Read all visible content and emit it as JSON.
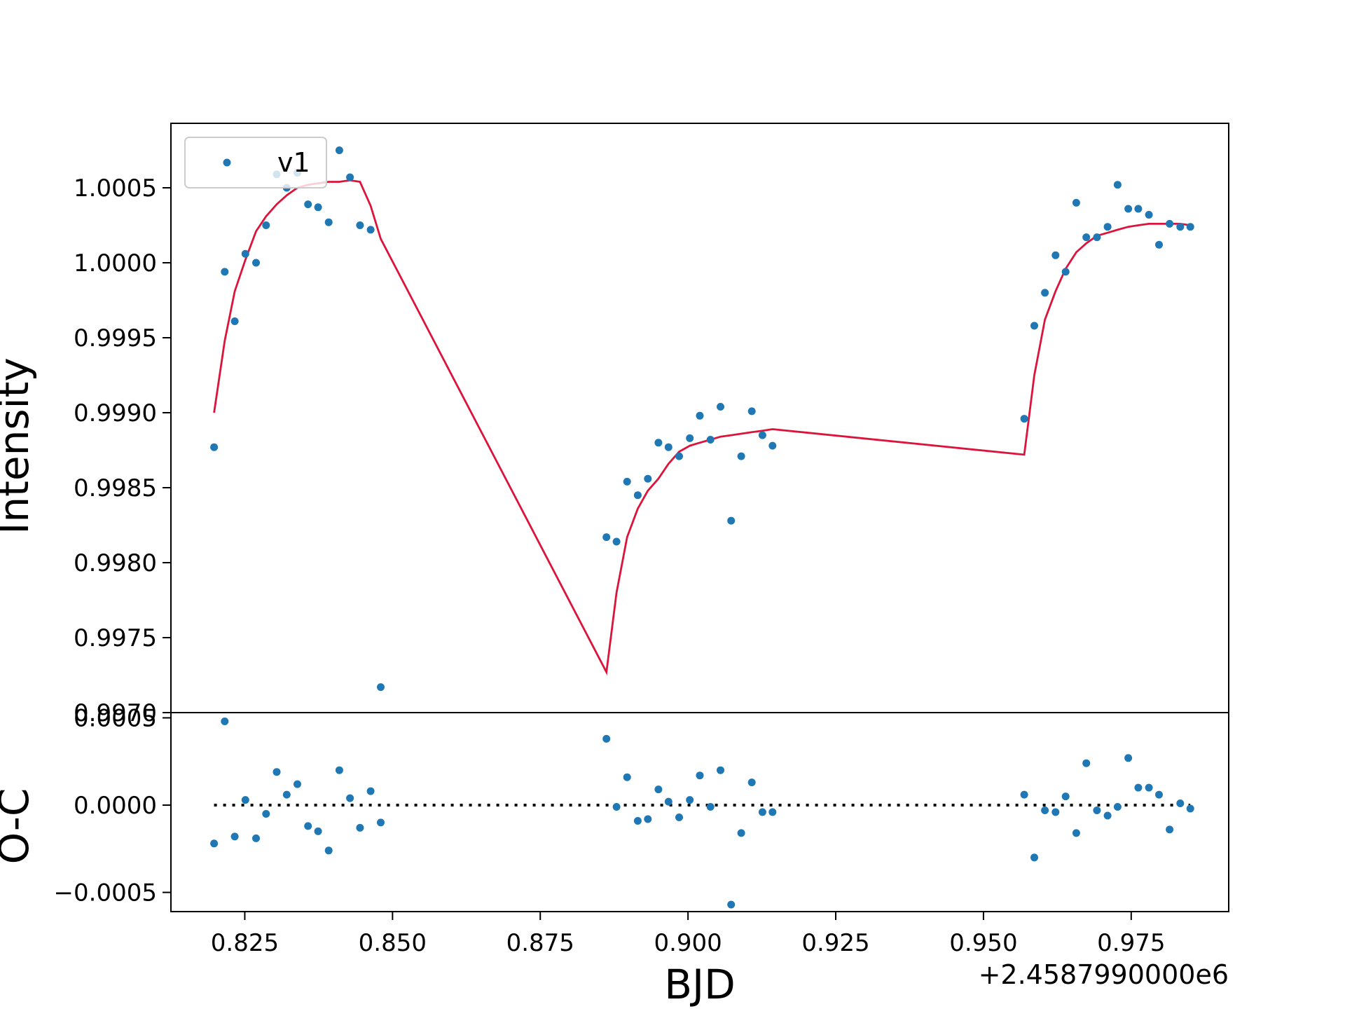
{
  "chart_data": {
    "type": "scatter",
    "colors": {
      "points": "#1f77b4",
      "model": "#dc143c",
      "zero_line": "#000000",
      "frame": "#000000"
    },
    "xlabel": "BJD",
    "x_offset_label": "+2.4587990000e6",
    "xlim": [
      0.8125,
      0.9915
    ],
    "x_ticks": [
      0.825,
      0.85,
      0.875,
      0.9,
      0.925,
      0.95,
      0.975
    ],
    "x_tick_labels": [
      "0.825",
      "0.850",
      "0.875",
      "0.900",
      "0.925",
      "0.950",
      "0.975"
    ],
    "top_panel": {
      "ylabel": "Intensity",
      "ylim": [
        0.997,
        1.00093
      ],
      "y_ticks": [
        0.997,
        0.9975,
        0.998,
        0.9985,
        0.999,
        0.9995,
        1.0,
        1.0005
      ],
      "y_tick_labels": [
        "0.9970",
        "0.9975",
        "0.9980",
        "0.9985",
        "0.9990",
        "0.9995",
        "1.0000",
        "1.0005"
      ],
      "legend": {
        "location": "upper-left",
        "entries": [
          "v1"
        ]
      },
      "series": [
        {
          "name": "v1",
          "kind": "points",
          "x": [
            0.8198,
            0.8216,
            0.8233,
            0.8251,
            0.8269,
            0.8286,
            0.8304,
            0.8321,
            0.8339,
            0.8357,
            0.8374,
            0.8392,
            0.841,
            0.8428,
            0.8445,
            0.8463,
            0.848,
            0.8862,
            0.8879,
            0.8897,
            0.8915,
            0.8932,
            0.895,
            0.8967,
            0.8985,
            0.9003,
            0.902,
            0.9038,
            0.9055,
            0.9073,
            0.909,
            0.9108,
            0.9126,
            0.9143,
            0.9569,
            0.9586,
            0.9604,
            0.9622,
            0.9639,
            0.9657,
            0.9674,
            0.9692,
            0.971,
            0.9727,
            0.9745,
            0.9762,
            0.978,
            0.9797,
            0.9815,
            0.9833,
            0.985
          ],
          "y": [
            0.99877,
            0.99994,
            0.99961,
            1.00006,
            1.0,
            1.00025,
            1.00059,
            1.0005,
            1.0006,
            1.00039,
            1.00037,
            1.00027,
            1.00075,
            1.00057,
            1.00025,
            1.00022,
            0.99717,
            0.99817,
            0.99814,
            0.99854,
            0.99845,
            0.99856,
            0.9988,
            0.99877,
            0.99871,
            0.99883,
            0.99898,
            0.99882,
            0.99904,
            0.99828,
            0.99871,
            0.99901,
            0.99885,
            0.99878,
            0.99896,
            0.99958,
            0.9998,
            1.00005,
            0.99994,
            1.0004,
            1.00017,
            1.00017,
            1.00024,
            1.00052,
            1.00036,
            1.00036,
            1.00032,
            1.00012,
            1.00026,
            1.00024,
            1.00024
          ]
        },
        {
          "kind": "line",
          "x": [
            0.8198,
            0.8216,
            0.8233,
            0.8251,
            0.8269,
            0.8286,
            0.8304,
            0.8321,
            0.8339,
            0.8357,
            0.8374,
            0.8392,
            0.841,
            0.8428,
            0.8445,
            0.8463,
            0.848,
            0.8862,
            0.8879,
            0.8897,
            0.8915,
            0.8932,
            0.895,
            0.8967,
            0.8985,
            0.9003,
            0.902,
            0.9038,
            0.9055,
            0.9073,
            0.909,
            0.9108,
            0.9126,
            0.9143,
            0.9569,
            0.9586,
            0.9604,
            0.9622,
            0.9639,
            0.9657,
            0.9674,
            0.9692,
            0.971,
            0.9727,
            0.9745,
            0.9762,
            0.978,
            0.9797,
            0.9815,
            0.9833,
            0.985
          ],
          "y": [
            0.999,
            0.99948,
            0.99981,
            1.00002,
            1.00021,
            1.00031,
            1.00039,
            1.00045,
            1.0005,
            1.00052,
            1.00053,
            1.00054,
            1.00054,
            1.00055,
            1.00054,
            1.00038,
            1.00016,
            0.99727,
            0.9978,
            0.99817,
            0.99836,
            0.99848,
            0.99856,
            0.99866,
            0.99874,
            0.99878,
            0.9988,
            0.99882,
            0.99884,
            0.99885,
            0.99886,
            0.99887,
            0.99888,
            0.99889,
            0.99872,
            0.99925,
            0.99962,
            0.99981,
            0.99996,
            1.00007,
            1.00013,
            1.00018,
            1.0002,
            1.00022,
            1.00024,
            1.00025,
            1.00026,
            1.00026,
            1.00026,
            1.00026,
            1.00025
          ]
        }
      ]
    },
    "bottom_panel": {
      "ylabel": "O-C",
      "ylim": [
        -0.00061,
        0.00053
      ],
      "y_ticks": [
        -0.0005,
        0.0,
        0.0005
      ],
      "y_tick_labels": [
        "−0.0005",
        "0.0000",
        "0.0005"
      ],
      "zero_line": {
        "style": "dotted",
        "y": 0.0,
        "x_range": [
          0.8198,
          0.985
        ]
      },
      "residuals_x": [
        0.8198,
        0.8216,
        0.8233,
        0.8251,
        0.8269,
        0.8286,
        0.8304,
        0.8321,
        0.8339,
        0.8357,
        0.8374,
        0.8392,
        0.841,
        0.8428,
        0.8445,
        0.8463,
        0.848,
        0.8862,
        0.8879,
        0.8897,
        0.8915,
        0.8932,
        0.895,
        0.8967,
        0.8985,
        0.9003,
        0.902,
        0.9038,
        0.9055,
        0.9073,
        0.909,
        0.9108,
        0.9126,
        0.9143,
        0.9569,
        0.9586,
        0.9604,
        0.9622,
        0.9639,
        0.9657,
        0.9674,
        0.9692,
        0.971,
        0.9727,
        0.9745,
        0.9762,
        0.978,
        0.9797,
        0.9815,
        0.9833,
        0.985
      ],
      "residuals": [
        -0.00022,
        0.00048,
        -0.00018,
        3e-05,
        -0.00019,
        -5e-05,
        0.00019,
        6e-05,
        0.00012,
        -0.00012,
        -0.00015,
        -0.00026,
        0.0002,
        4e-05,
        -0.00013,
        8e-05,
        -0.0001,
        0.00038,
        -1e-05,
        0.00016,
        -9e-05,
        -8e-05,
        9e-05,
        2e-05,
        -7e-05,
        3e-05,
        0.00017,
        -1e-05,
        0.0002,
        -0.00057,
        -0.00016,
        0.00013,
        -4e-05,
        -4e-05,
        6e-05,
        -0.0003,
        -3e-05,
        -4e-05,
        5e-05,
        -0.00016,
        0.00024,
        -3e-05,
        -6e-05,
        -1e-05,
        0.00027,
        0.0001,
        0.0001,
        6e-05,
        -0.00014,
        1e-05,
        -2e-05
      ]
    }
  }
}
